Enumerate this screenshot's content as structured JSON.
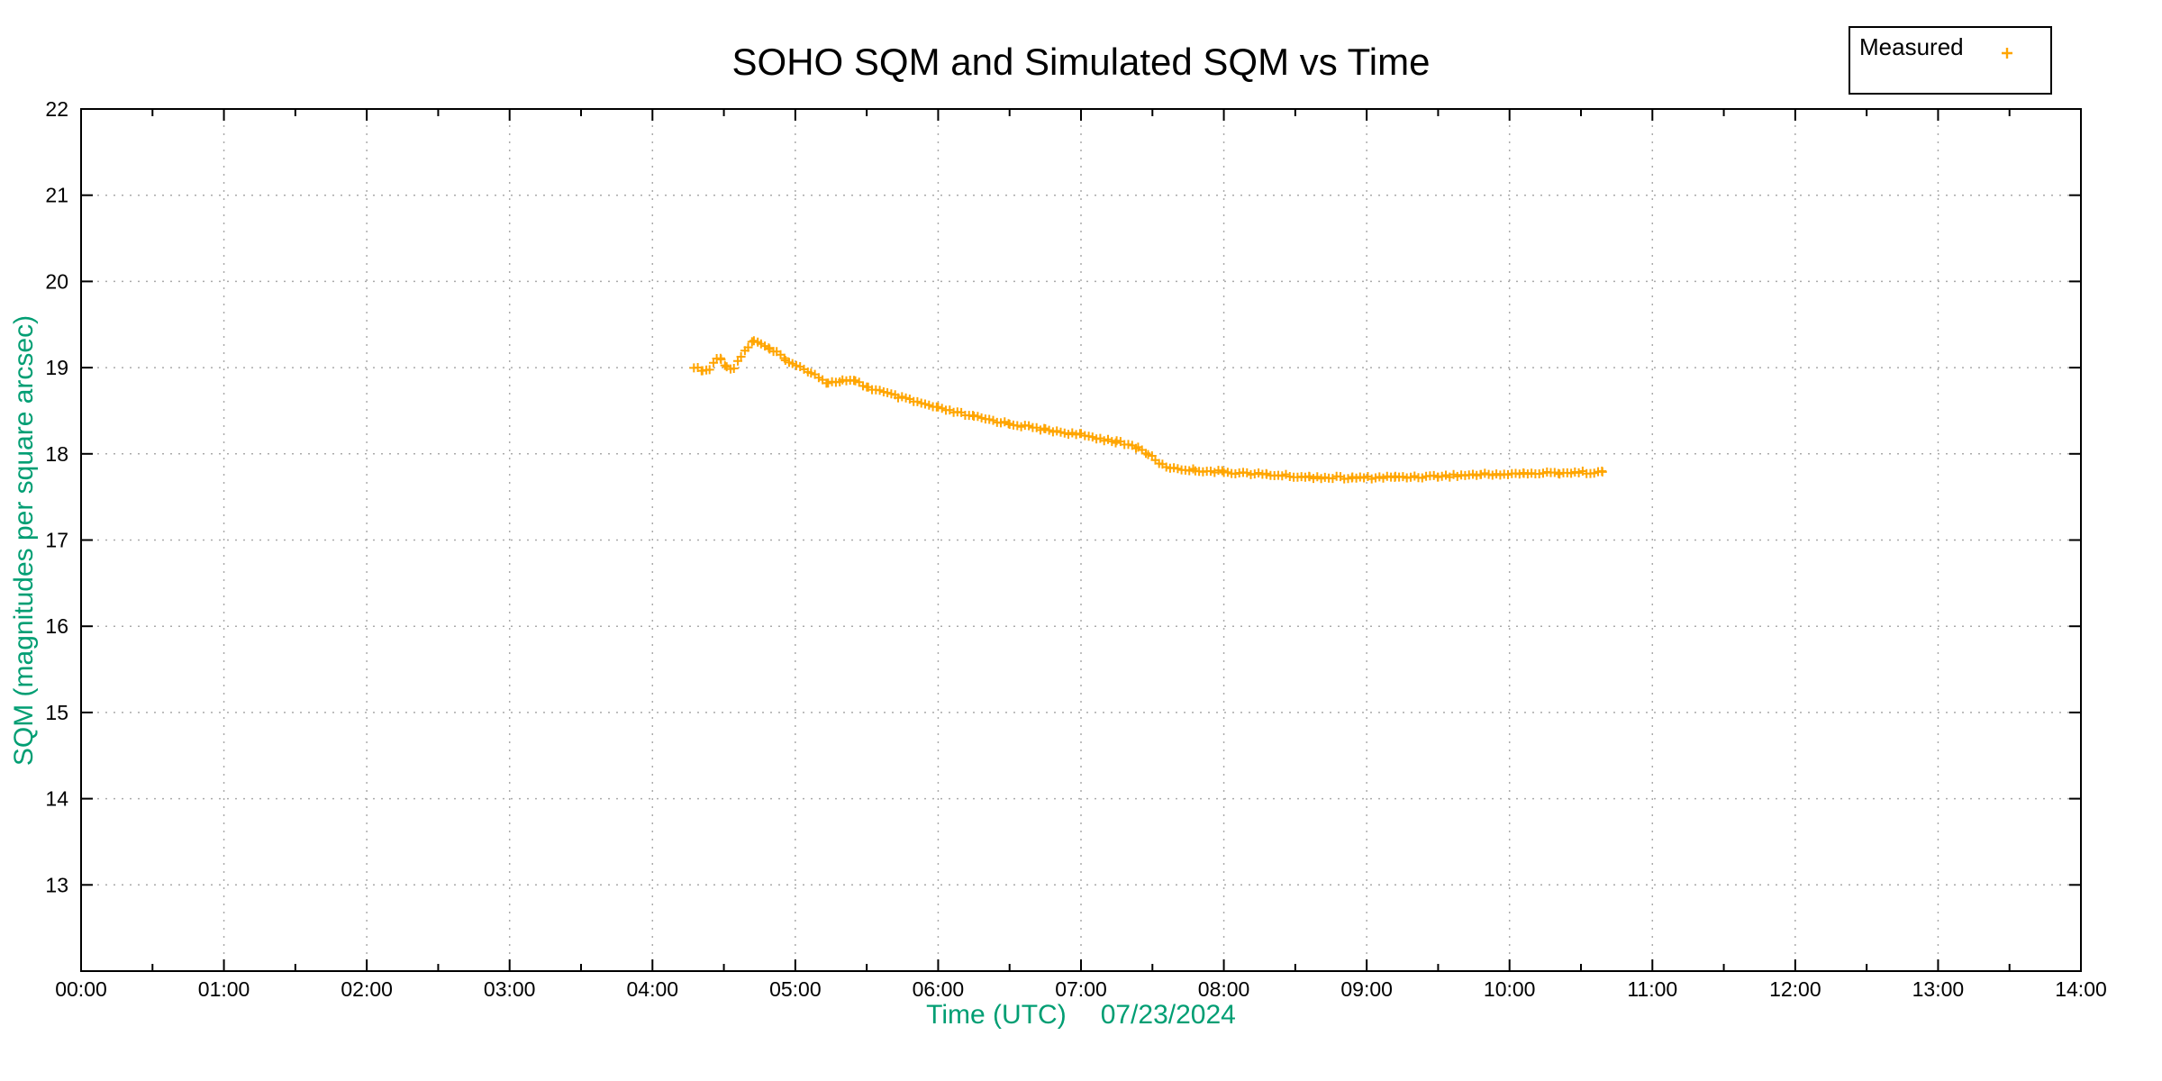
{
  "page": {
    "background": "#ffffff"
  },
  "chart_data": {
    "type": "scatter",
    "title": "SOHO SQM and Simulated SQM vs Time",
    "xlabel": "Time (UTC)",
    "date_label": "07/23/2024",
    "ylabel": "SQM (magnitudes per square arcsec)",
    "x_axis": {
      "tick_labels": [
        "00:00",
        "01:00",
        "02:00",
        "03:00",
        "04:00",
        "05:00",
        "06:00",
        "07:00",
        "08:00",
        "09:00",
        "10:00",
        "11:00",
        "12:00",
        "13:00",
        "14:00"
      ],
      "tick_values_hours": [
        0,
        1,
        2,
        3,
        4,
        5,
        6,
        7,
        8,
        9,
        10,
        11,
        12,
        13,
        14
      ],
      "minor_tick_interval_hours": 0.5,
      "range_hours": [
        0,
        14
      ]
    },
    "y_axis": {
      "tick_labels": [
        "13",
        "14",
        "15",
        "16",
        "17",
        "18",
        "19",
        "20",
        "21",
        "22"
      ],
      "tick_values": [
        13,
        14,
        15,
        16,
        17,
        18,
        19,
        20,
        21,
        22
      ],
      "ylim": [
        12,
        22
      ]
    },
    "grid": {
      "style": "dotted",
      "color": "#aaaaaa",
      "on": true
    },
    "legend": {
      "position": "top-right",
      "entries": [
        {
          "label": "Measured",
          "marker": "plus-icon",
          "color": "#ffa500"
        }
      ]
    },
    "series": [
      {
        "name": "Measured",
        "marker": "plus",
        "color": "#ffa500",
        "points_t_hours_vs_sqm": [
          [
            4.29,
            19.01
          ],
          [
            4.35,
            18.96
          ],
          [
            4.4,
            18.98
          ],
          [
            4.45,
            19.1
          ],
          [
            4.48,
            19.11
          ],
          [
            4.52,
            19.0
          ],
          [
            4.57,
            19.0
          ],
          [
            4.62,
            19.14
          ],
          [
            4.67,
            19.24
          ],
          [
            4.71,
            19.32
          ],
          [
            4.76,
            19.28
          ],
          [
            4.82,
            19.21
          ],
          [
            4.87,
            19.17
          ],
          [
            4.93,
            19.1
          ],
          [
            4.98,
            19.04
          ],
          [
            5.11,
            18.95
          ],
          [
            5.23,
            18.82
          ],
          [
            5.33,
            18.85
          ],
          [
            5.42,
            18.84
          ],
          [
            5.51,
            18.77
          ],
          [
            5.72,
            18.66
          ],
          [
            6.0,
            18.53
          ],
          [
            6.25,
            18.43
          ],
          [
            6.5,
            18.35
          ],
          [
            6.75,
            18.28
          ],
          [
            7.0,
            18.22
          ],
          [
            7.25,
            18.14
          ],
          [
            7.4,
            18.07
          ],
          [
            7.47,
            18.0
          ],
          [
            7.52,
            17.93
          ],
          [
            7.57,
            17.87
          ],
          [
            7.65,
            17.83
          ],
          [
            7.8,
            17.81
          ],
          [
            8.0,
            17.79
          ],
          [
            8.3,
            17.76
          ],
          [
            8.6,
            17.73
          ],
          [
            8.9,
            17.72
          ],
          [
            9.2,
            17.73
          ],
          [
            9.5,
            17.74
          ],
          [
            9.8,
            17.76
          ],
          [
            10.1,
            17.77
          ],
          [
            10.35,
            17.78
          ],
          [
            10.65,
            17.79
          ]
        ],
        "marker_densify_step_hours": 0.027
      }
    ],
    "colors": {
      "series_orange": "#ffa500",
      "axis_label_green": "#009e73",
      "grid_gray": "#aaaaaa",
      "axis_black": "#000000"
    }
  }
}
